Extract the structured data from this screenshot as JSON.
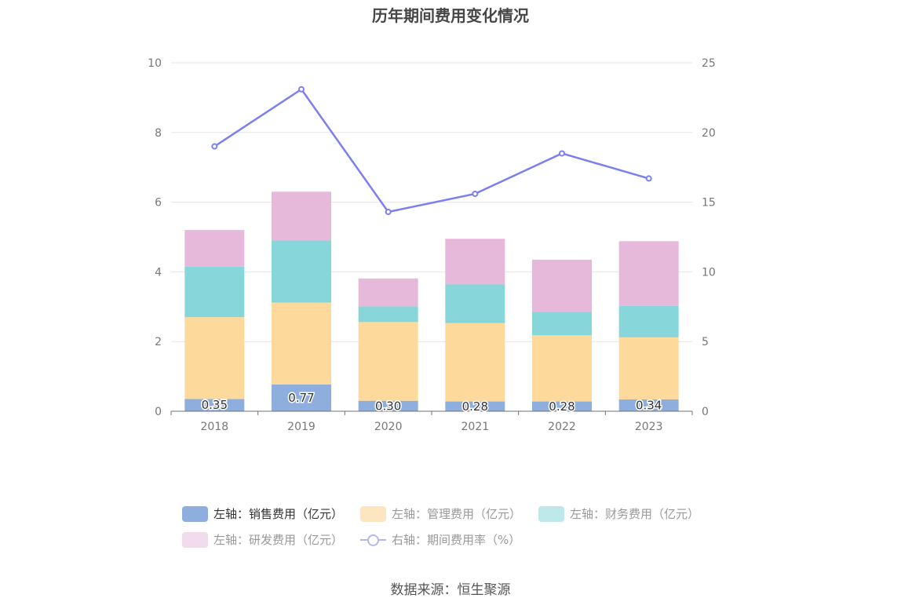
{
  "title": "历年期间费用变化情况",
  "source": "数据来源：恒生聚源",
  "colors": {
    "sales": "#8eaedd",
    "admin": "#fdd99c",
    "finance": "#87d6d9",
    "rd": "#e6b8da",
    "rate": "#7b7ff0",
    "grid": "#e3e5ea",
    "axis_text": "#777777"
  },
  "legend": [
    {
      "label": "左轴：销售费用（亿元）",
      "color": "#8eaedd",
      "kind": "bar",
      "active": true
    },
    {
      "label": "左轴：管理费用（亿元）",
      "color": "#fde6bf",
      "kind": "bar",
      "active": false
    },
    {
      "label": "左轴：财务费用（亿元）",
      "color": "#bfe8ea",
      "kind": "bar",
      "active": false
    },
    {
      "label": "左轴：研发费用（亿元）",
      "color": "#f1dcec",
      "kind": "bar",
      "active": false
    },
    {
      "label": "右轴：期间费用率（%）",
      "color": "#b5b7f3",
      "kind": "line",
      "active": false
    }
  ],
  "chart_data": {
    "type": "bar",
    "stacked": true,
    "categories": [
      "2018",
      "2019",
      "2020",
      "2021",
      "2022",
      "2023"
    ],
    "y_left": {
      "min": 0,
      "max": 10,
      "ticks": [
        "0",
        "2",
        "4",
        "6",
        "8",
        "10"
      ]
    },
    "y_right": {
      "min": 0,
      "max": 25,
      "ticks": [
        "0",
        "5",
        "10",
        "15",
        "20",
        "25"
      ]
    },
    "grid": true,
    "legend_position": "bottom",
    "series": [
      {
        "name": "左轴：销售费用（亿元）",
        "key": "sales",
        "axis": "left",
        "values": [
          0.35,
          0.77,
          0.3,
          0.28,
          0.28,
          0.34
        ],
        "labels": [
          "0.35",
          "0.77",
          "0.30",
          "0.28",
          "0.28",
          "0.34"
        ]
      },
      {
        "name": "左轴：管理费用（亿元）",
        "key": "admin",
        "axis": "left",
        "values": [
          2.35,
          2.35,
          2.26,
          2.25,
          1.9,
          1.78
        ]
      },
      {
        "name": "左轴：财务费用（亿元）",
        "key": "finance",
        "axis": "left",
        "values": [
          1.45,
          1.78,
          0.45,
          1.11,
          0.67,
          0.9
        ]
      },
      {
        "name": "左轴：研发费用（亿元）",
        "key": "rd",
        "axis": "left",
        "values": [
          1.05,
          1.4,
          0.8,
          1.31,
          1.5,
          1.86
        ]
      },
      {
        "name": "右轴：期间费用率（%）",
        "key": "rate",
        "axis": "right",
        "type": "line",
        "values": [
          19.0,
          23.1,
          14.3,
          15.6,
          18.5,
          16.7
        ]
      }
    ]
  }
}
